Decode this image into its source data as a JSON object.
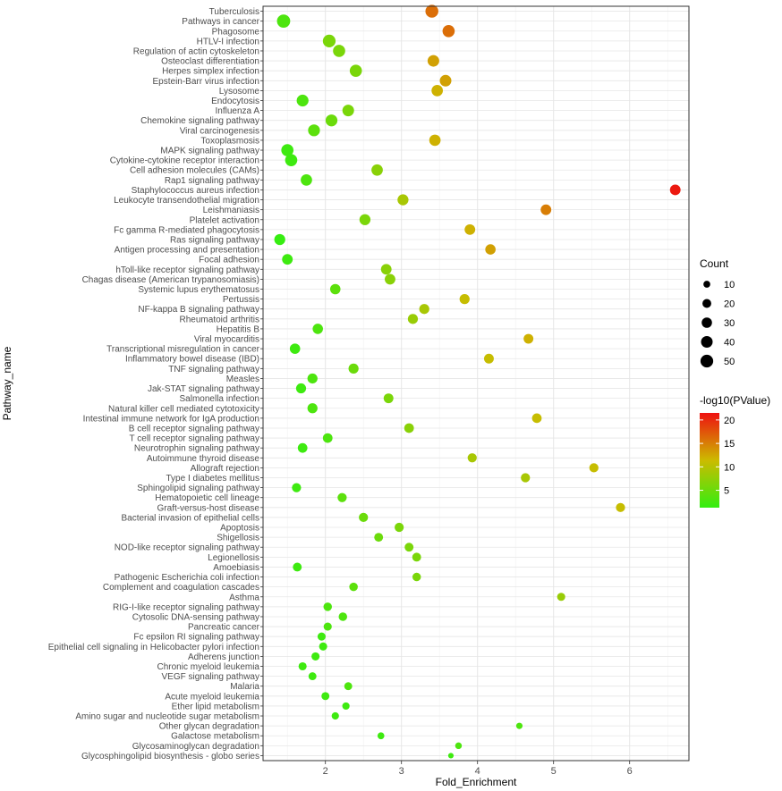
{
  "chart_data": {
    "type": "scatter",
    "xlabel": "Fold_Enrichment",
    "ylabel": "Pathway_name",
    "xlim": [
      1.18,
      6.78
    ],
    "x_ticks": [
      2,
      3,
      4,
      5,
      6
    ],
    "grid": true,
    "colors": {
      "low": "#33ee11",
      "mid": "#ccbb00",
      "high": "#ee1111"
    },
    "size_legend": {
      "title": "Count",
      "values": [
        10,
        20,
        30,
        40,
        50
      ]
    },
    "color_legend": {
      "title": "-log10(PValue)",
      "ticks": [
        5,
        10,
        15,
        20
      ],
      "range": [
        1.3,
        21.5
      ]
    },
    "points": [
      {
        "pathway": "Tuberculosis",
        "x": 3.4,
        "count": 52,
        "logp": 16
      },
      {
        "pathway": "Pathways in cancer",
        "x": 1.45,
        "count": 55,
        "logp": 3
      },
      {
        "pathway": "Phagosome",
        "x": 3.62,
        "count": 45,
        "logp": 16
      },
      {
        "pathway": "HTLV-I infection",
        "x": 2.05,
        "count": 50,
        "logp": 6
      },
      {
        "pathway": "Regulation of actin cytoskeleton",
        "x": 2.18,
        "count": 45,
        "logp": 6
      },
      {
        "pathway": "Osteoclast differentiation",
        "x": 3.42,
        "count": 40,
        "logp": 13
      },
      {
        "pathway": "Herpes simplex infection",
        "x": 2.4,
        "count": 45,
        "logp": 6
      },
      {
        "pathway": "Epstein-Barr virus infection",
        "x": 3.58,
        "count": 40,
        "logp": 13
      },
      {
        "pathway": "Lysosome",
        "x": 3.47,
        "count": 38,
        "logp": 12
      },
      {
        "pathway": "Endocytosis",
        "x": 1.7,
        "count": 42,
        "logp": 3
      },
      {
        "pathway": "Influenza A",
        "x": 2.3,
        "count": 40,
        "logp": 6
      },
      {
        "pathway": "Chemokine signaling pathway",
        "x": 2.08,
        "count": 42,
        "logp": 5
      },
      {
        "pathway": "Viral carcinogenesis",
        "x": 1.85,
        "count": 42,
        "logp": 4
      },
      {
        "pathway": "Toxoplasmosis",
        "x": 3.44,
        "count": 38,
        "logp": 12
      },
      {
        "pathway": "MAPK signaling pathway",
        "x": 1.5,
        "count": 45,
        "logp": 2
      },
      {
        "pathway": "Cytokine-cytokine receptor interaction",
        "x": 1.55,
        "count": 45,
        "logp": 2
      },
      {
        "pathway": "Cell adhesion molecules (CAMs)",
        "x": 2.68,
        "count": 38,
        "logp": 7
      },
      {
        "pathway": "Rap1 signaling pathway",
        "x": 1.75,
        "count": 38,
        "logp": 3
      },
      {
        "pathway": "Staphylococcus aureus infection",
        "x": 6.6,
        "count": 32,
        "logp": 21
      },
      {
        "pathway": "Leukocyte transendothelial migration",
        "x": 3.02,
        "count": 35,
        "logp": 9
      },
      {
        "pathway": "Leishmaniasis",
        "x": 4.9,
        "count": 32,
        "logp": 15
      },
      {
        "pathway": "Platelet activation",
        "x": 2.52,
        "count": 35,
        "logp": 6
      },
      {
        "pathway": "Fc gamma R-mediated phagocytosis",
        "x": 3.9,
        "count": 32,
        "logp": 12
      },
      {
        "pathway": "Ras signaling pathway",
        "x": 1.4,
        "count": 35,
        "logp": 1.5
      },
      {
        "pathway": "Antigen processing and presentation",
        "x": 4.17,
        "count": 30,
        "logp": 13
      },
      {
        "pathway": "Focal adhesion",
        "x": 1.5,
        "count": 32,
        "logp": 2
      },
      {
        "pathway": "hToll-like receptor signaling pathway",
        "x": 2.8,
        "count": 32,
        "logp": 7
      },
      {
        "pathway": "Chagas disease (American trypanosomiasis)",
        "x": 2.85,
        "count": 32,
        "logp": 7
      },
      {
        "pathway": "Systemic lupus erythematosus",
        "x": 2.13,
        "count": 30,
        "logp": 4
      },
      {
        "pathway": "Pertussis",
        "x": 3.83,
        "count": 28,
        "logp": 11
      },
      {
        "pathway": "NF-kappa B signaling pathway",
        "x": 3.3,
        "count": 28,
        "logp": 9
      },
      {
        "pathway": "Rheumatoid arthritis",
        "x": 3.15,
        "count": 28,
        "logp": 8
      },
      {
        "pathway": "Hepatitis B",
        "x": 1.9,
        "count": 30,
        "logp": 3
      },
      {
        "pathway": "Viral myocarditis",
        "x": 4.67,
        "count": 26,
        "logp": 12
      },
      {
        "pathway": "Transcriptional misregulation in cancer",
        "x": 1.6,
        "count": 30,
        "logp": 2
      },
      {
        "pathway": "Inflammatory bowel disease (IBD)",
        "x": 4.15,
        "count": 26,
        "logp": 11
      },
      {
        "pathway": "TNF signaling pathway",
        "x": 2.37,
        "count": 28,
        "logp": 5
      },
      {
        "pathway": "Measles",
        "x": 1.83,
        "count": 28,
        "logp": 3
      },
      {
        "pathway": "Jak-STAT signaling pathway",
        "x": 1.68,
        "count": 28,
        "logp": 2
      },
      {
        "pathway": "Salmonella infection",
        "x": 2.83,
        "count": 26,
        "logp": 6
      },
      {
        "pathway": "Natural killer cell mediated cytotoxicity",
        "x": 1.83,
        "count": 28,
        "logp": 3
      },
      {
        "pathway": "Intestinal immune network for IgA production",
        "x": 4.78,
        "count": 25,
        "logp": 11
      },
      {
        "pathway": "B cell receptor signaling pathway",
        "x": 3.1,
        "count": 25,
        "logp": 7
      },
      {
        "pathway": "T cell receptor signaling pathway",
        "x": 2.03,
        "count": 25,
        "logp": 3
      },
      {
        "pathway": "Neurotrophin signaling pathway",
        "x": 1.7,
        "count": 25,
        "logp": 2
      },
      {
        "pathway": "Autoimmune thyroid disease",
        "x": 3.93,
        "count": 22,
        "logp": 9
      },
      {
        "pathway": "Allograft rejection",
        "x": 5.53,
        "count": 22,
        "logp": 11
      },
      {
        "pathway": "Type I diabetes mellitus",
        "x": 4.63,
        "count": 22,
        "logp": 9
      },
      {
        "pathway": "Sphingolipid signaling pathway",
        "x": 1.62,
        "count": 22,
        "logp": 2
      },
      {
        "pathway": "Hematopoietic cell lineage",
        "x": 2.22,
        "count": 22,
        "logp": 4
      },
      {
        "pathway": "Graft-versus-host disease",
        "x": 5.88,
        "count": 22,
        "logp": 11
      },
      {
        "pathway": "Bacterial invasion of epithelial cells",
        "x": 2.5,
        "count": 22,
        "logp": 5
      },
      {
        "pathway": "Apoptosis",
        "x": 2.97,
        "count": 22,
        "logp": 6
      },
      {
        "pathway": "Shigellosis",
        "x": 2.7,
        "count": 20,
        "logp": 5
      },
      {
        "pathway": "NOD-like receptor signaling pathway",
        "x": 3.1,
        "count": 20,
        "logp": 6
      },
      {
        "pathway": "Legionellosis",
        "x": 3.2,
        "count": 20,
        "logp": 6
      },
      {
        "pathway": "Amoebiasis",
        "x": 1.63,
        "count": 20,
        "logp": 2
      },
      {
        "pathway": "Pathogenic Escherichia coli infection",
        "x": 3.2,
        "count": 18,
        "logp": 6
      },
      {
        "pathway": "Complement and coagulation cascades",
        "x": 2.37,
        "count": 18,
        "logp": 4
      },
      {
        "pathway": "Asthma",
        "x": 5.1,
        "count": 16,
        "logp": 8
      },
      {
        "pathway": "RIG-I-like receptor signaling pathway",
        "x": 2.03,
        "count": 18,
        "logp": 3
      },
      {
        "pathway": "Cytosolic DNA-sensing pathway",
        "x": 2.23,
        "count": 18,
        "logp": 3
      },
      {
        "pathway": "Pancreatic cancer",
        "x": 2.03,
        "count": 16,
        "logp": 3
      },
      {
        "pathway": "Fc epsilon RI signaling pathway",
        "x": 1.95,
        "count": 16,
        "logp": 2
      },
      {
        "pathway": "Epithelial cell signaling in Helicobacter pylori infection",
        "x": 1.97,
        "count": 16,
        "logp": 2
      },
      {
        "pathway": "Adherens junction",
        "x": 1.87,
        "count": 16,
        "logp": 2
      },
      {
        "pathway": "Chronic myeloid leukemia",
        "x": 1.7,
        "count": 16,
        "logp": 2
      },
      {
        "pathway": "VEGF signaling pathway",
        "x": 1.83,
        "count": 15,
        "logp": 2
      },
      {
        "pathway": "Malaria",
        "x": 2.3,
        "count": 15,
        "logp": 3
      },
      {
        "pathway": "Acute myeloid leukemia",
        "x": 2.0,
        "count": 15,
        "logp": 2
      },
      {
        "pathway": "Ether lipid metabolism",
        "x": 2.27,
        "count": 12,
        "logp": 2
      },
      {
        "pathway": "Amino sugar and nucleotide sugar metabolism",
        "x": 2.13,
        "count": 12,
        "logp": 2
      },
      {
        "pathway": "Other glycan degradation",
        "x": 4.55,
        "count": 8,
        "logp": 3
      },
      {
        "pathway": "Galactose metabolism",
        "x": 2.73,
        "count": 10,
        "logp": 2
      },
      {
        "pathway": "Glycosaminoglycan degradation",
        "x": 3.75,
        "count": 9,
        "logp": 3
      },
      {
        "pathway": "Glycosphingolipid biosynthesis - globo series",
        "x": 3.65,
        "count": 5,
        "logp": 2
      }
    ]
  }
}
